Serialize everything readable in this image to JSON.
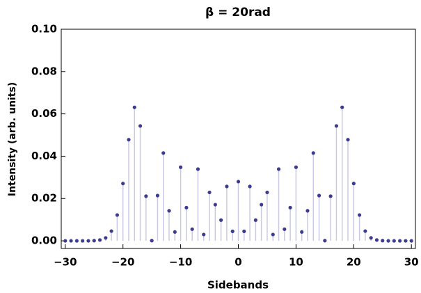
{
  "chart_data": {
    "type": "stem",
    "title": "β = 20rad",
    "xlabel": "Sidebands",
    "ylabel": "Intensity (arb. units)",
    "x": [
      -30,
      -29,
      -28,
      -27,
      -26,
      -25,
      -24,
      -23,
      -22,
      -21,
      -20,
      -19,
      -18,
      -17,
      -16,
      -15,
      -14,
      -13,
      -12,
      -11,
      -10,
      -9,
      -8,
      -7,
      -6,
      -5,
      -4,
      -3,
      -2,
      -1,
      0,
      1,
      2,
      3,
      4,
      5,
      6,
      7,
      8,
      9,
      10,
      11,
      12,
      13,
      14,
      15,
      16,
      17,
      18,
      19,
      20,
      21,
      22,
      23,
      24,
      25,
      26,
      27,
      28,
      29,
      30
    ],
    "values": [
      0,
      0,
      0,
      0,
      0,
      0.0001,
      0.0004,
      0.0014,
      0.0046,
      0.0122,
      0.0271,
      0.0478,
      0.0631,
      0.0543,
      0.0211,
      0.0001,
      0.0214,
      0.0415,
      0.0142,
      0.0042,
      0.0348,
      0.0157,
      0.0055,
      0.0339,
      0.003,
      0.0229,
      0.0171,
      0.0098,
      0.0257,
      0.0045,
      0.028,
      0.0045,
      0.0257,
      0.0098,
      0.0171,
      0.0229,
      0.003,
      0.0339,
      0.0055,
      0.0157,
      0.0348,
      0.0042,
      0.0142,
      0.0415,
      0.0214,
      0.0001,
      0.0211,
      0.0543,
      0.0631,
      0.0478,
      0.0271,
      0.0122,
      0.0046,
      0.0014,
      0.0004,
      0.0001,
      0,
      0,
      0,
      0,
      0
    ],
    "color": "#3b3b8f",
    "stem_color": "#c9c9e6",
    "xlim": [
      -30.7,
      30.7
    ],
    "ylim": [
      -0.0036,
      0.1
    ],
    "xticks": [
      {
        "value": -30,
        "label": "−30"
      },
      {
        "value": -20,
        "label": "−20"
      },
      {
        "value": -10,
        "label": "−10"
      },
      0,
      10,
      20,
      30
    ],
    "yticks": [
      {
        "value": 0,
        "label": "0.00"
      },
      {
        "value": 0.02,
        "label": "0.02"
      },
      {
        "value": 0.04,
        "label": "0.04"
      },
      {
        "value": 0.06,
        "label": "0.06"
      },
      {
        "value": 0.08,
        "label": "0.08"
      },
      {
        "value": 0.1,
        "label": "0.10"
      }
    ]
  }
}
